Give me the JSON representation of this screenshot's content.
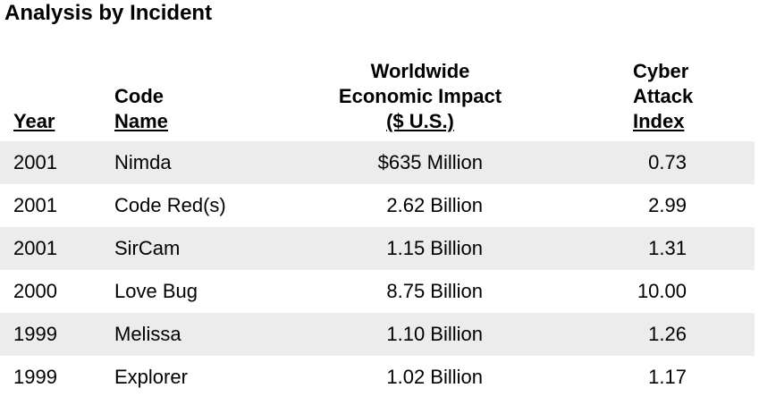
{
  "title": "Analysis by Incident",
  "headers": {
    "year": "Year",
    "code_name_line1": "Code",
    "code_name_line2": "Name",
    "impact_line1": "Worldwide",
    "impact_line2": "Economic Impact",
    "impact_line3": "($ U.S.)",
    "index_line1": "Cyber",
    "index_line2": "Attack",
    "index_line3": "Index"
  },
  "rows": [
    {
      "year": "2001",
      "code_name": "Nimda",
      "impact": "$635 Million",
      "index": "0.73"
    },
    {
      "year": "2001",
      "code_name": "Code Red(s)",
      "impact": "2.62 Billion",
      "index": "2.99"
    },
    {
      "year": "2001",
      "code_name": "SirCam",
      "impact": "1.15 Billion",
      "index": "1.31"
    },
    {
      "year": "2000",
      "code_name": "Love Bug",
      "impact": "8.75 Billion",
      "index": "10.00"
    },
    {
      "year": "1999",
      "code_name": "Melissa",
      "impact": "1.10 Billion",
      "index": "1.26"
    },
    {
      "year": "1999",
      "code_name": "Explorer",
      "impact": "1.02 Billion",
      "index": "1.17"
    }
  ]
}
